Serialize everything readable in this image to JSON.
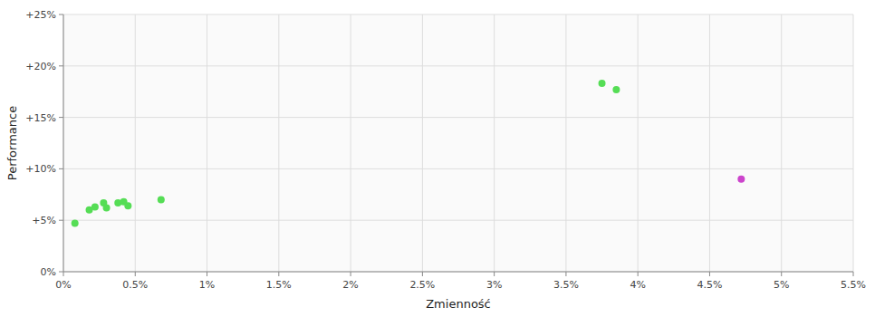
{
  "chart_data": {
    "type": "scatter",
    "xlabel": "Zmienność",
    "ylabel": "Performance",
    "xlim": [
      0,
      0.055
    ],
    "ylim": [
      0,
      0.25
    ],
    "xticks": [
      {
        "value": 0,
        "label": "0%"
      },
      {
        "value": 0.005,
        "label": "0.5%"
      },
      {
        "value": 0.01,
        "label": "1%"
      },
      {
        "value": 0.015,
        "label": "1.5%"
      },
      {
        "value": 0.02,
        "label": "2%"
      },
      {
        "value": 0.025,
        "label": "2.5%"
      },
      {
        "value": 0.03,
        "label": "3%"
      },
      {
        "value": 0.035,
        "label": "3.5%"
      },
      {
        "value": 0.04,
        "label": "4%"
      },
      {
        "value": 0.045,
        "label": "4.5%"
      },
      {
        "value": 0.05,
        "label": "5%"
      },
      {
        "value": 0.055,
        "label": "5.5%"
      }
    ],
    "yticks": [
      {
        "value": 0,
        "label": "0%"
      },
      {
        "value": 0.05,
        "label": "+5%"
      },
      {
        "value": 0.1,
        "label": "+10%"
      },
      {
        "value": 0.15,
        "label": "+15%"
      },
      {
        "value": 0.2,
        "label": "+20%"
      },
      {
        "value": 0.25,
        "label": "+25%"
      }
    ],
    "grid": true,
    "series": [
      {
        "color": "#55dd55",
        "x": [
          0.0008,
          0.0018,
          0.0022,
          0.0028,
          0.003,
          0.0038,
          0.0042,
          0.0045,
          0.0068,
          0.0375,
          0.0385
        ],
        "values": [
          0.047,
          0.06,
          0.063,
          0.067,
          0.062,
          0.067,
          0.068,
          0.064,
          0.07,
          0.183,
          0.177
        ]
      },
      {
        "color": "#cc44cc",
        "x": [
          0.0472
        ],
        "values": [
          0.09
        ]
      }
    ]
  }
}
